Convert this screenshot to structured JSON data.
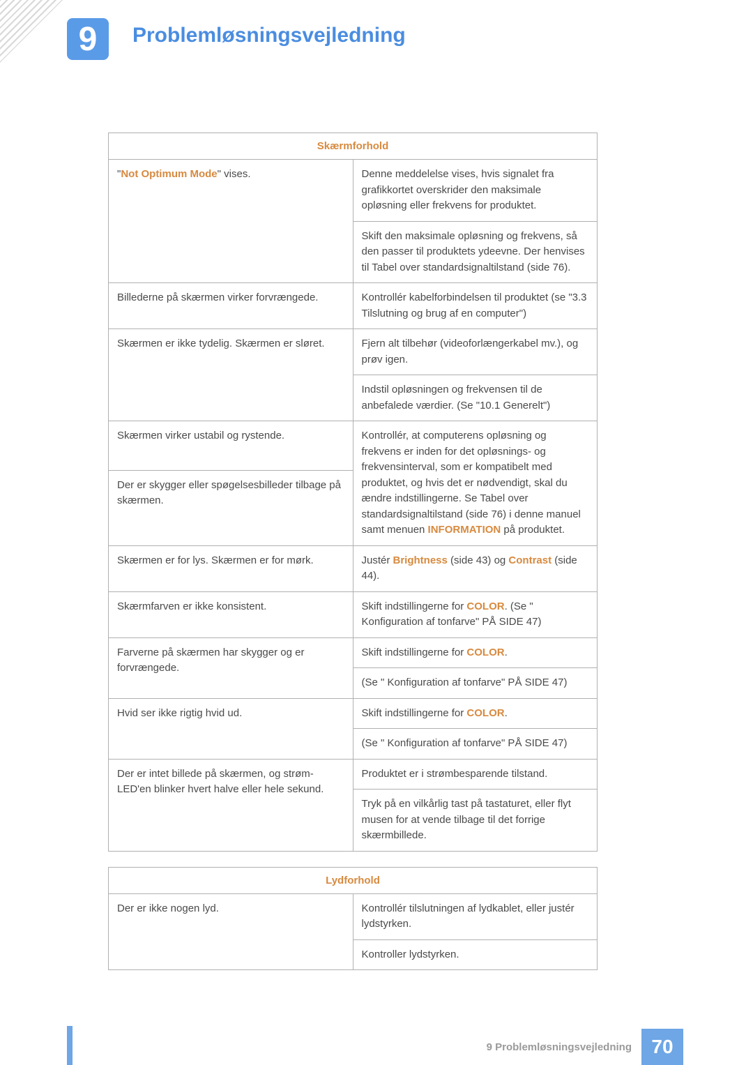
{
  "colors": {
    "accent_blue": "#4a8de0",
    "accent_orange": "#d78a3f",
    "header_text": "#d78a3f",
    "title_text": "#4a8de0",
    "badge_bg": "#5a9be8",
    "page_badge_bg": "#6ea6e6",
    "stripe": "#6ea6e6",
    "cell_text": "#4a4a4a"
  },
  "chapter": {
    "number": "9",
    "title": "Problemløsningsvejledning"
  },
  "tables": [
    {
      "header": "Skærmforhold",
      "rows": [
        {
          "left_spans": [
            {
              "text": "\"",
              "hl": false
            },
            {
              "text": "Not Optimum Mode",
              "hl": true,
              "color": "accent_orange"
            },
            {
              "text": "\" vises.",
              "hl": false
            }
          ],
          "left_rowspan": 2,
          "right": "Denne meddelelse vises, hvis signalet fra grafikkortet overskrider den maksimale opløsning eller frekvens for produktet."
        },
        {
          "right": "Skift den maksimale opløsning og frekvens, så den passer til produktets ydeevne. Der henvises til Tabel over standardsignaltilstand (side 76)."
        },
        {
          "left_spans": [
            {
              "text": "Billederne på skærmen virker forvrængede.",
              "hl": false
            }
          ],
          "right": "Kontrollér kabelforbindelsen til produktet (se \"3.3 Tilslutning og brug af en computer\")"
        },
        {
          "left_spans": [
            {
              "text": "Skærmen er ikke tydelig. Skærmen er sløret.",
              "hl": false
            }
          ],
          "left_rowspan": 2,
          "right": "Fjern alt tilbehør (videoforlængerkabel mv.), og prøv igen."
        },
        {
          "right": "Indstil opløsningen og frekvensen til de anbefalede værdier. (Se \"10.1 Generelt\")"
        },
        {
          "left_spans": [
            {
              "text": "Skærmen virker ustabil og rystende.",
              "hl": false
            }
          ],
          "right_spans": [
            {
              "text": "Kontrollér, at computerens opløsning og frekvens er inden for det opløsnings- og frekvensinterval, som er kompatibelt med produktet, og hvis det er nødvendigt, skal du ændre indstillingerne. Se Tabel over standardsignaltilstand (side 76) i denne manuel samt menuen ",
              "hl": false
            },
            {
              "text": "INFORMATION",
              "hl": true,
              "color": "accent_orange"
            },
            {
              "text": " på produktet.",
              "hl": false
            }
          ],
          "right_rowspan": 2
        },
        {
          "left_spans": [
            {
              "text": "Der er skygger eller spøgelsesbilleder tilbage på skærmen.",
              "hl": false
            }
          ]
        },
        {
          "left_spans": [
            {
              "text": "Skærmen er for lys. Skærmen er for mørk.",
              "hl": false
            }
          ],
          "right_spans": [
            {
              "text": "Justér ",
              "hl": false
            },
            {
              "text": "Brightness",
              "hl": true,
              "color": "accent_orange"
            },
            {
              "text": " (side 43) og ",
              "hl": false
            },
            {
              "text": "Contrast",
              "hl": true,
              "color": "accent_orange"
            },
            {
              "text": " (side 44).",
              "hl": false
            }
          ]
        },
        {
          "left_spans": [
            {
              "text": "Skærmfarven er ikke konsistent.",
              "hl": false
            }
          ],
          "right_spans": [
            {
              "text": "Skift indstillingerne for ",
              "hl": false
            },
            {
              "text": "COLOR",
              "hl": true,
              "color": "accent_orange"
            },
            {
              "text": ". (Se \" Konfiguration af tonfarve\" PÅ SIDE 47)",
              "hl": false
            }
          ]
        },
        {
          "left_spans": [
            {
              "text": "Farverne på skærmen har skygger og er forvrængede.",
              "hl": false
            }
          ],
          "left_rowspan": 2,
          "right_spans": [
            {
              "text": "Skift indstillingerne for ",
              "hl": false
            },
            {
              "text": "COLOR",
              "hl": true,
              "color": "accent_orange"
            },
            {
              "text": ".",
              "hl": false
            }
          ]
        },
        {
          "right": "(Se \" Konfiguration af tonfarve\" PÅ SIDE 47)"
        },
        {
          "left_spans": [
            {
              "text": "Hvid ser ikke rigtig hvid ud.",
              "hl": false
            }
          ],
          "left_rowspan": 2,
          "right_spans": [
            {
              "text": "Skift indstillingerne for ",
              "hl": false
            },
            {
              "text": "COLOR",
              "hl": true,
              "color": "accent_orange"
            },
            {
              "text": ".",
              "hl": false
            }
          ]
        },
        {
          "right": "(Se \" Konfiguration af tonfarve\" PÅ SIDE 47)"
        },
        {
          "left_spans": [
            {
              "text": "Der er intet billede på skærmen, og strøm-LED'en blinker hvert halve eller hele sekund.",
              "hl": false
            }
          ],
          "left_rowspan": 2,
          "right": "Produktet er i strømbesparende tilstand."
        },
        {
          "right": "Tryk på en vilkårlig tast på tastaturet, eller flyt musen for at vende tilbage til det forrige skærmbillede."
        }
      ]
    },
    {
      "header": "Lydforhold",
      "rows": [
        {
          "left_spans": [
            {
              "text": "Der er ikke nogen lyd.",
              "hl": false
            }
          ],
          "left_rowspan": 2,
          "right": "Kontrollér tilslutningen af lydkablet, eller justér lydstyrken."
        },
        {
          "right": "Kontroller lydstyrken."
        }
      ]
    }
  ],
  "footer": {
    "text": "9 Problemløsningsvejledning",
    "page": "70"
  }
}
